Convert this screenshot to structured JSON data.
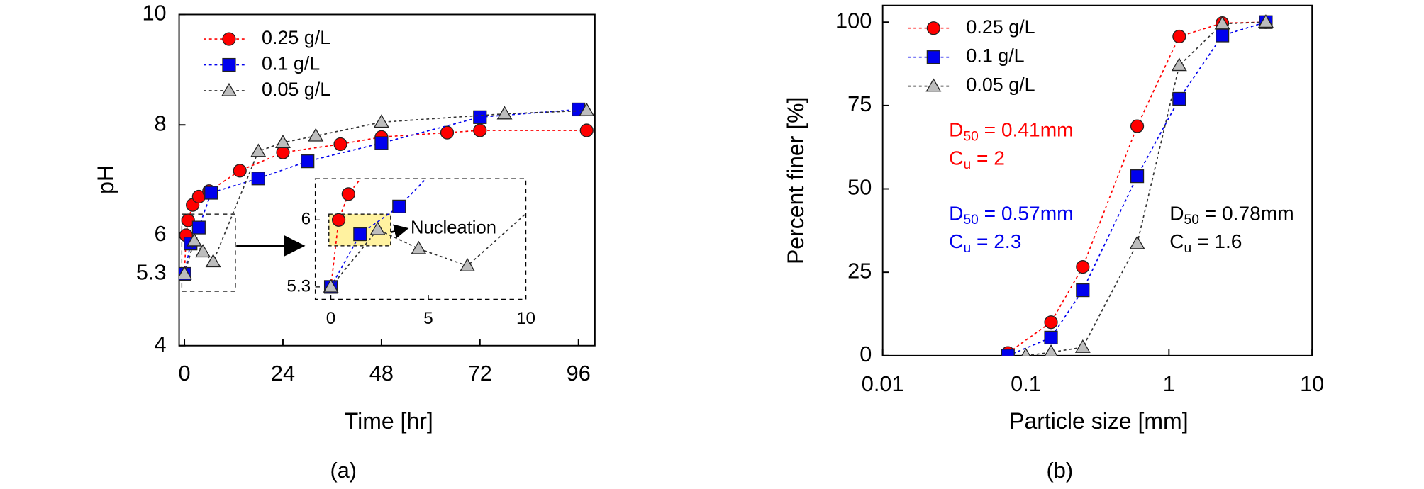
{
  "chart_data": [
    {
      "type": "line",
      "caption": "(a)",
      "xlabel": "Time [hr]",
      "ylabel": "pH",
      "xlim": [
        -1.3,
        100
      ],
      "ylim": [
        4,
        10
      ],
      "xticks": [
        0,
        24,
        48,
        72,
        96
      ],
      "yticks": [
        4,
        5.3,
        6,
        8,
        10
      ],
      "legend": "upper left",
      "series": [
        {
          "name": "0.25 g/L",
          "color": "#ff0000",
          "marker": "circle",
          "x": [
            0,
            0.4,
            0.9,
            2,
            3.5,
            6,
            13.5,
            24,
            38,
            48,
            64,
            72,
            98
          ],
          "values": [
            5.3,
            6.0,
            6.27,
            6.55,
            6.7,
            6.8,
            7.17,
            7.5,
            7.65,
            7.78,
            7.86,
            7.9,
            7.9
          ]
        },
        {
          "name": "0.1 g/L",
          "color": "#0000ee",
          "marker": "square",
          "x": [
            0,
            1.5,
            3.5,
            6.5,
            18,
            30,
            48,
            72,
            96
          ],
          "values": [
            5.3,
            5.85,
            6.14,
            6.77,
            7.03,
            7.34,
            7.67,
            8.14,
            8.28
          ]
        },
        {
          "name": "0.05 g/L",
          "color": "#555555",
          "marker": "triangle",
          "x": [
            0,
            2.4,
            4.5,
            7,
            18,
            24,
            32,
            48,
            78,
            98
          ],
          "values": [
            5.3,
            5.9,
            5.7,
            5.52,
            7.52,
            7.68,
            7.8,
            8.05,
            8.2,
            8.26
          ]
        }
      ],
      "inset": {
        "xlim": [
          -0.8,
          10
        ],
        "ylim": [
          5.17,
          6.43
        ],
        "xticks": [
          0,
          5,
          10
        ],
        "yticks": [
          5.3,
          6
        ],
        "annotation": "Nucleation"
      }
    },
    {
      "type": "line",
      "caption": "(b)",
      "xlabel": "Particle size [mm]",
      "ylabel": "Percent finer [%]",
      "xscale": "log",
      "xlim": [
        0.01,
        10
      ],
      "ylim": [
        0,
        105
      ],
      "xticks": [
        0.01,
        0.1,
        1,
        10
      ],
      "yticks": [
        0,
        25,
        50,
        75,
        100
      ],
      "legend": "upper left",
      "series": [
        {
          "name": "0.25 g/L",
          "color": "#ff0000",
          "marker": "circle",
          "x": [
            0.075,
            0.15,
            0.25,
            0.6,
            1.18,
            2.36,
            4.75
          ],
          "values": [
            0.8,
            10,
            26.6,
            68.8,
            95.7,
            99.7,
            100
          ]
        },
        {
          "name": "0.1 g/L",
          "color": "#0000ee",
          "marker": "square",
          "x": [
            0.075,
            0.15,
            0.25,
            0.6,
            1.18,
            2.36,
            4.75
          ],
          "values": [
            0,
            5.4,
            19.6,
            53.8,
            77,
            96,
            100
          ]
        },
        {
          "name": "0.05 g/L",
          "color": "#555555",
          "marker": "triangle",
          "x": [
            0.1,
            0.15,
            0.25,
            0.6,
            1.18,
            2.36,
            4.75
          ],
          "values": [
            0,
            1,
            2.5,
            33.6,
            87,
            99.5,
            100
          ]
        }
      ],
      "annotations": [
        {
          "color": "#ff0000",
          "lines": [
            {
              "main": "D",
              "sub": "50",
              "tail": " = 0.41mm"
            },
            {
              "main": "C",
              "sub": "u",
              "tail": " = 2"
            }
          ]
        },
        {
          "color": "#0000ee",
          "lines": [
            {
              "main": "D",
              "sub": "50",
              "tail": " = 0.57mm"
            },
            {
              "main": "C",
              "sub": "u",
              "tail": " = 2.3"
            }
          ]
        },
        {
          "color": "#000000",
          "lines": [
            {
              "main": "D",
              "sub": "50",
              "tail": " = 0.78mm"
            },
            {
              "main": "C",
              "sub": "u",
              "tail": " = 1.6"
            }
          ]
        }
      ]
    }
  ]
}
